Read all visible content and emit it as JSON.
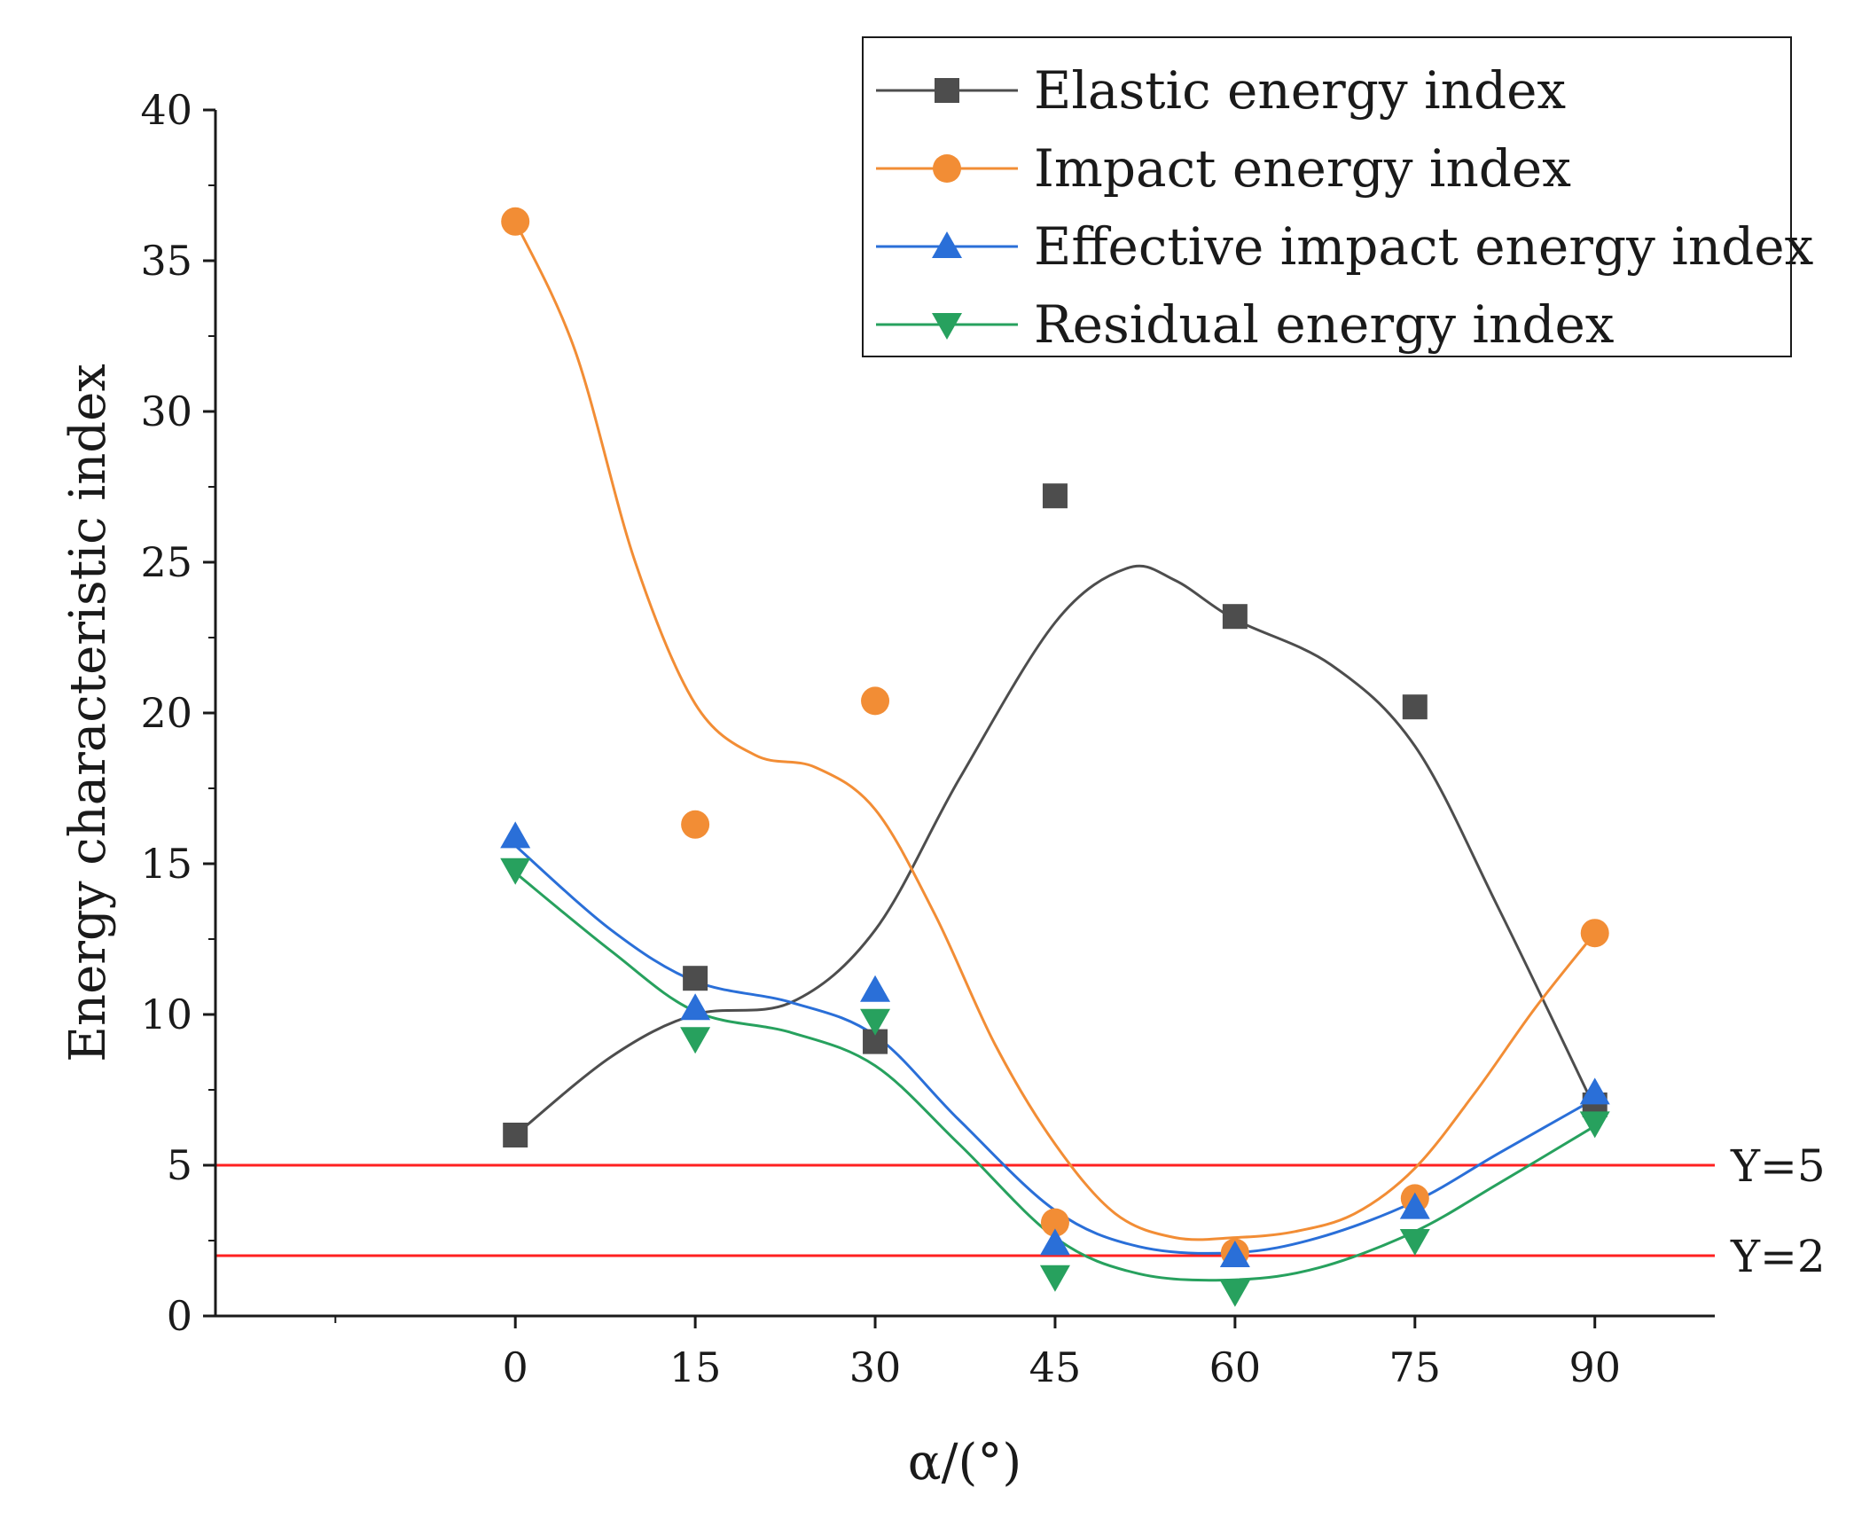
{
  "chart_data": {
    "type": "scatter",
    "title": "",
    "xlabel": "α/(°)",
    "ylabel": "Energy characteristic index",
    "xlim": [
      -25,
      100
    ],
    "ylim": [
      0,
      40
    ],
    "x": [
      0,
      15,
      30,
      45,
      60,
      75,
      90
    ],
    "x_ticks": [
      "0",
      "15",
      "30",
      "45",
      "60",
      "75",
      "90"
    ],
    "y_ticks": [
      "0",
      "5",
      "10",
      "15",
      "20",
      "25",
      "30",
      "35",
      "40"
    ],
    "grid": false,
    "legend_position": "top-right",
    "series": [
      {
        "name": "Elastic energy index",
        "color": "#4d4d4d",
        "marker": "square",
        "values": [
          6.0,
          11.2,
          9.1,
          27.2,
          23.2,
          20.2,
          7.0
        ],
        "fit": [
          [
            0,
            6.0
          ],
          [
            8,
            8.6
          ],
          [
            15,
            10.0
          ],
          [
            23,
            10.4
          ],
          [
            30,
            12.8
          ],
          [
            37,
            17.8
          ],
          [
            45,
            23.0
          ],
          [
            51,
            24.8
          ],
          [
            55,
            24.4
          ],
          [
            60,
            23.1
          ],
          [
            68,
            21.6
          ],
          [
            75,
            18.9
          ],
          [
            82,
            13.5
          ],
          [
            90,
            6.9
          ]
        ]
      },
      {
        "name": "Impact energy index",
        "color": "#f28d35",
        "marker": "circle",
        "values": [
          36.3,
          16.3,
          20.4,
          3.1,
          2.1,
          3.9,
          12.7
        ],
        "fit": [
          [
            0,
            36.3
          ],
          [
            5,
            32.0
          ],
          [
            10,
            25.0
          ],
          [
            15,
            20.3
          ],
          [
            20,
            18.6
          ],
          [
            25,
            18.2
          ],
          [
            30,
            16.8
          ],
          [
            35,
            13.3
          ],
          [
            40,
            9.0
          ],
          [
            45,
            5.7
          ],
          [
            50,
            3.4
          ],
          [
            55,
            2.6
          ],
          [
            60,
            2.6
          ],
          [
            65,
            2.8
          ],
          [
            70,
            3.4
          ],
          [
            75,
            4.9
          ],
          [
            80,
            7.4
          ],
          [
            85,
            10.2
          ],
          [
            90,
            12.7
          ]
        ]
      },
      {
        "name": "Effective impact energy index",
        "color": "#2a6fd8",
        "marker": "triangle-up",
        "values": [
          15.9,
          10.2,
          10.8,
          2.4,
          2.0,
          3.6,
          7.4
        ],
        "fit": [
          [
            0,
            15.6
          ],
          [
            8,
            12.8
          ],
          [
            15,
            11.1
          ],
          [
            23,
            10.4
          ],
          [
            30,
            9.3
          ],
          [
            37,
            6.5
          ],
          [
            45,
            3.5
          ],
          [
            52,
            2.3
          ],
          [
            60,
            2.1
          ],
          [
            67,
            2.6
          ],
          [
            75,
            3.8
          ],
          [
            82,
            5.4
          ],
          [
            90,
            7.2
          ]
        ]
      },
      {
        "name": "Residual energy index",
        "color": "#27a15e",
        "marker": "triangle-down",
        "values": [
          14.8,
          9.2,
          9.8,
          1.3,
          0.8,
          2.5,
          6.4
        ],
        "fit": [
          [
            0,
            14.7
          ],
          [
            8,
            12.1
          ],
          [
            15,
            10.1
          ],
          [
            23,
            9.4
          ],
          [
            30,
            8.3
          ],
          [
            37,
            5.7
          ],
          [
            45,
            2.6
          ],
          [
            52,
            1.4
          ],
          [
            60,
            1.2
          ],
          [
            67,
            1.6
          ],
          [
            75,
            2.8
          ],
          [
            82,
            4.4
          ],
          [
            90,
            6.3
          ]
        ]
      }
    ],
    "reference_lines": [
      {
        "y": 5,
        "label": "Y=5",
        "color": "#ff2020"
      },
      {
        "y": 2,
        "label": "Y=2",
        "color": "#ff2020"
      }
    ]
  }
}
